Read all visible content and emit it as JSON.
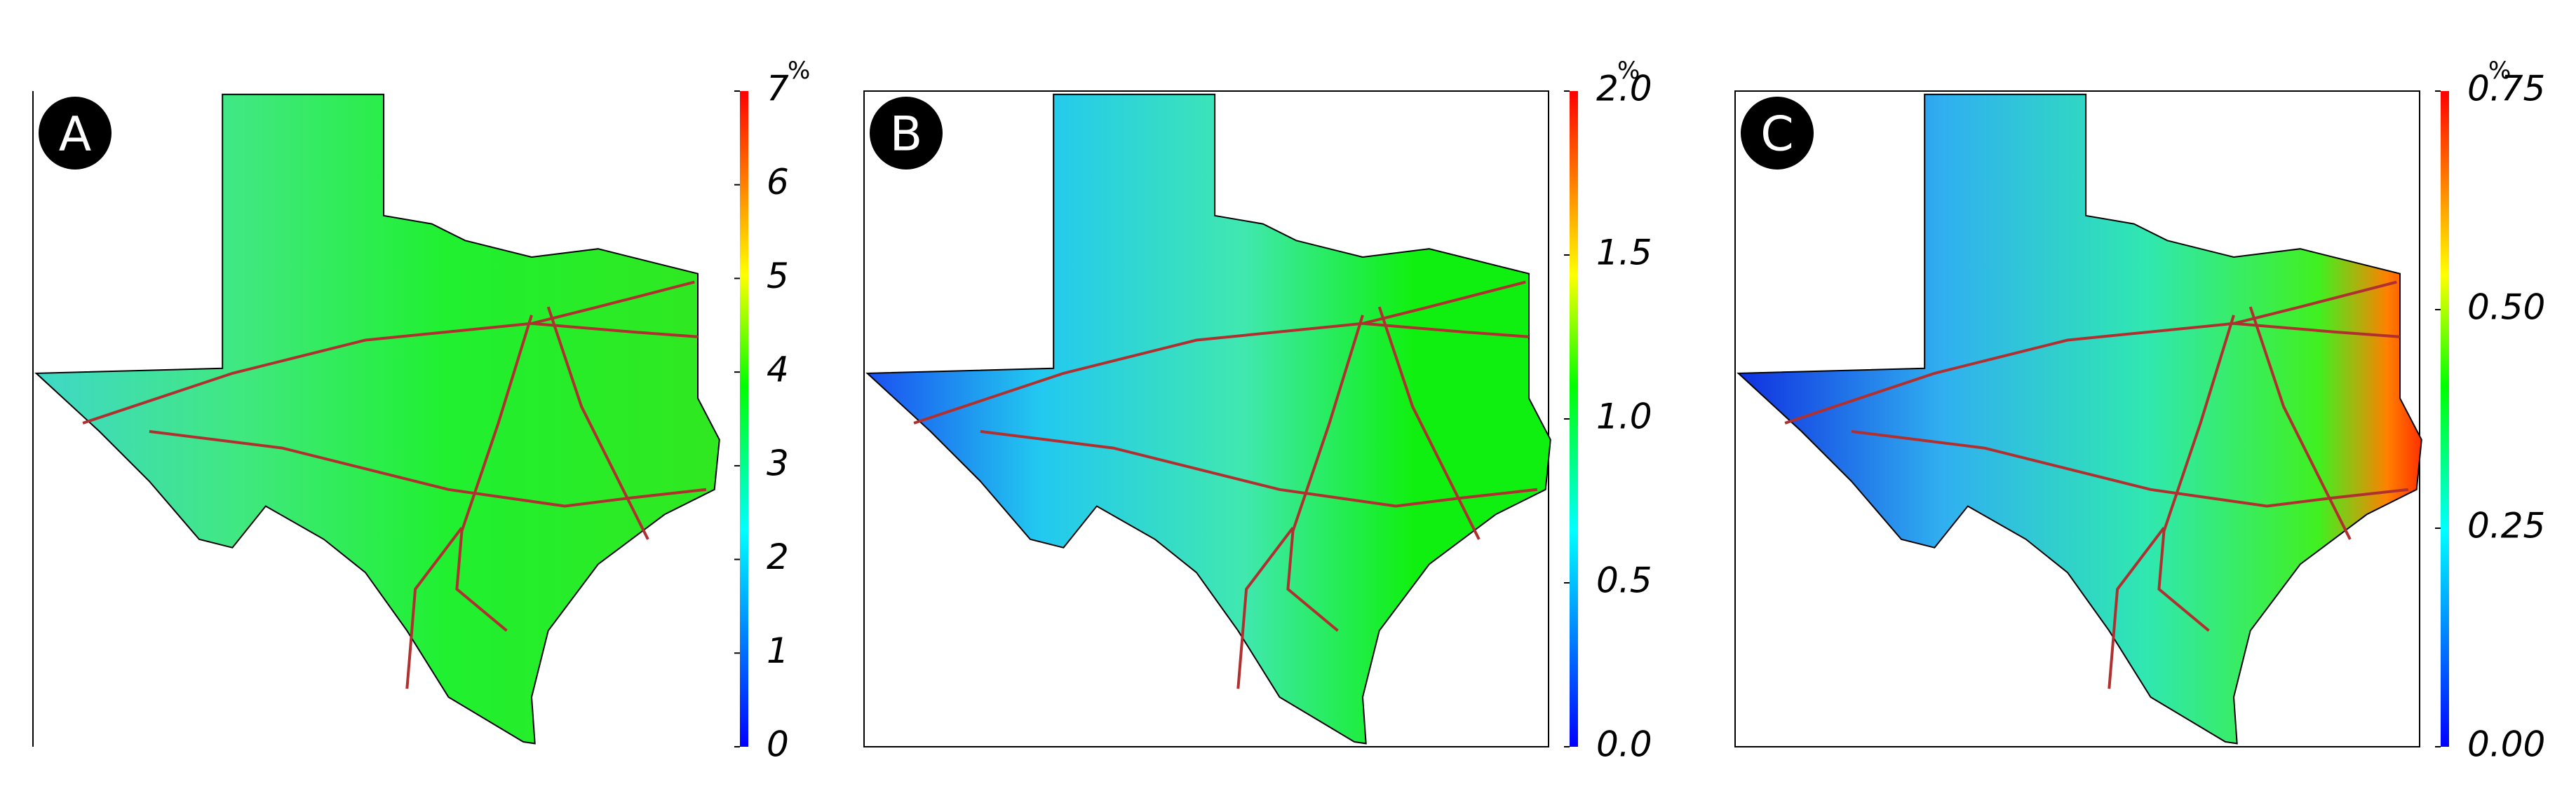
{
  "panels": [
    {
      "label": "A",
      "colorbar": {
        "unit": "%",
        "lim": [
          0,
          7
        ],
        "ticks": [
          0,
          1,
          2,
          3,
          4,
          5,
          6,
          7
        ]
      }
    },
    {
      "label": "B",
      "colorbar": {
        "unit": "%",
        "lim": [
          0,
          2
        ],
        "ticks": [
          {
            "value": 0,
            "label": "0.0"
          },
          {
            "value": 0.5,
            "label": "0.5"
          },
          {
            "value": 1,
            "label": "1.0"
          },
          {
            "value": 1.5,
            "label": "1.5"
          },
          {
            "value": 2,
            "label": "2.0"
          }
        ]
      }
    },
    {
      "label": "C",
      "colorbar": {
        "unit": "%",
        "lim": [
          0,
          0.75
        ],
        "ticks": [
          {
            "value": 0,
            "label": "0.00"
          },
          {
            "value": 0.25,
            "label": "0.25"
          },
          {
            "value": 0.5,
            "label": "0.50"
          },
          {
            "value": 0.75,
            "label": "0.75"
          }
        ]
      }
    }
  ]
}
